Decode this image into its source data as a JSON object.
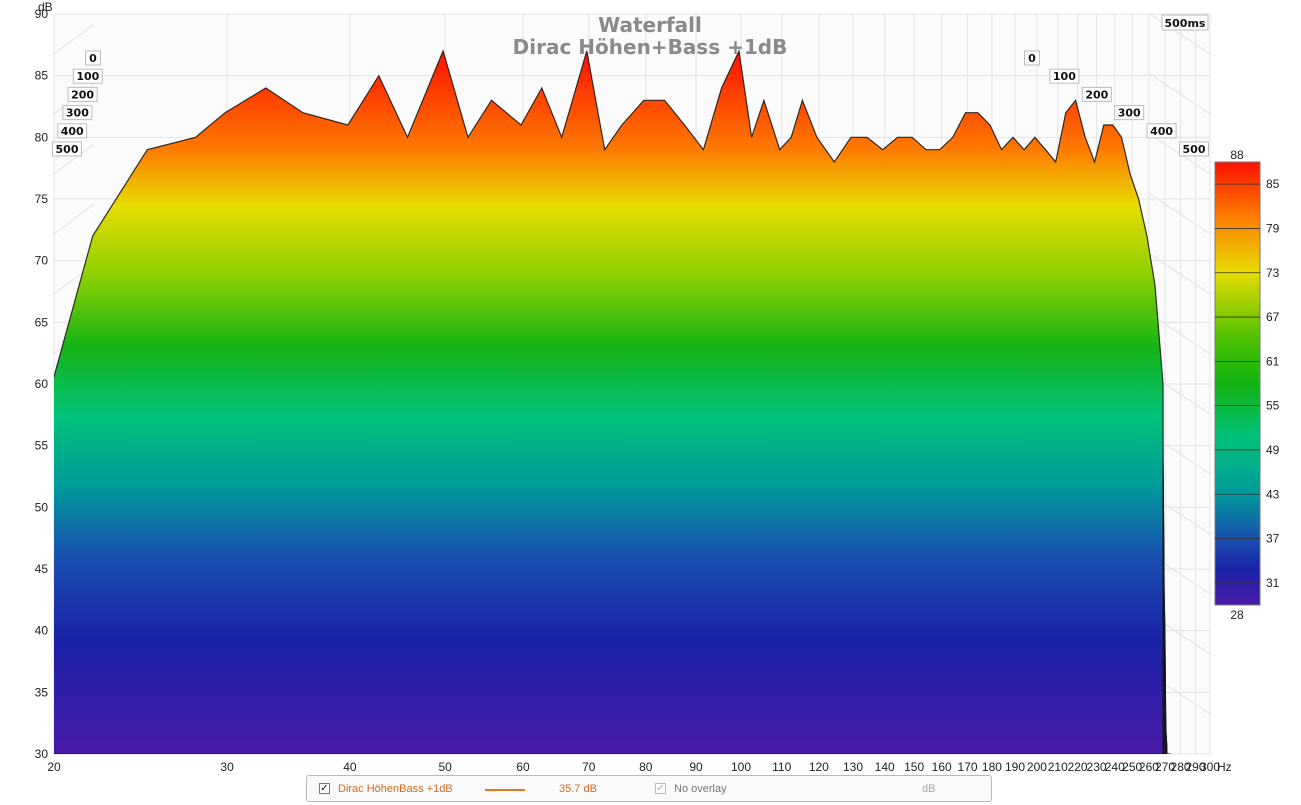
{
  "chart_data": {
    "type": "area",
    "title": "Waterfall",
    "subtitle": "Dirac Höhen+Bass +1dB",
    "ylabel": "dB",
    "xlabel": "Hz",
    "time_end_label": "500ms",
    "ylim": [
      30,
      90
    ],
    "xlim": [
      20,
      300
    ],
    "x_axis_scale": "log",
    "grid": true,
    "yticks": [
      30,
      35,
      40,
      45,
      50,
      55,
      60,
      65,
      70,
      75,
      80,
      85,
      90
    ],
    "xticks": [
      20,
      30,
      40,
      50,
      60,
      70,
      80,
      90,
      100,
      110,
      120,
      130,
      140,
      150,
      160,
      170,
      180,
      190,
      200,
      210,
      220,
      230,
      240,
      250,
      260,
      270,
      280,
      290,
      300
    ],
    "time_axis_ticks_ms": [
      "0",
      "100",
      "200",
      "300",
      "400",
      "500"
    ],
    "series": [
      {
        "x": [
          20,
          22,
          25,
          28,
          30,
          33,
          36,
          40,
          43,
          46,
          50,
          53,
          56,
          60,
          63,
          66,
          70,
          73,
          76,
          80,
          84,
          88,
          92,
          96,
          100,
          103,
          106,
          110,
          113,
          116,
          120,
          125,
          130,
          135,
          140,
          145,
          150,
          155,
          160,
          165,
          170,
          175,
          180,
          185,
          190,
          195,
          200,
          205,
          210,
          215,
          220,
          225,
          230,
          235,
          240,
          245,
          250,
          255,
          260,
          265,
          270
        ],
        "values": [
          60,
          72,
          79,
          80,
          82,
          84,
          82,
          81,
          85,
          80,
          87,
          80,
          83,
          81,
          84,
          80,
          87,
          79,
          81,
          83,
          83,
          81,
          79,
          84,
          87,
          80,
          83,
          79,
          80,
          83,
          80,
          78,
          80,
          80,
          79,
          80,
          80,
          79,
          79,
          80,
          82,
          82,
          81,
          79,
          80,
          79,
          80,
          79,
          78,
          82,
          83,
          80,
          78,
          81,
          81,
          80,
          77,
          75,
          72,
          68,
          60
        ]
      }
    ],
    "colorbar": {
      "label_top": "88",
      "label_bottom": "28",
      "ticks": [
        85,
        79,
        73,
        67,
        61,
        55,
        49,
        43,
        37,
        31
      ],
      "colors": [
        "#ff1000",
        "#ff7a00",
        "#e6dc00",
        "#7ac500",
        "#12b412",
        "#00c27a",
        "#009a9a",
        "#1a4fb0",
        "#1a22a8",
        "#4a1aa8"
      ]
    }
  },
  "legend": {
    "measurement_name": "Dirac HöhenBass +1dB",
    "measurement_value": "35.7 dB",
    "overlay_label": "No overlay",
    "overlay_unit": "dB",
    "line_color": "#e07a1e"
  }
}
